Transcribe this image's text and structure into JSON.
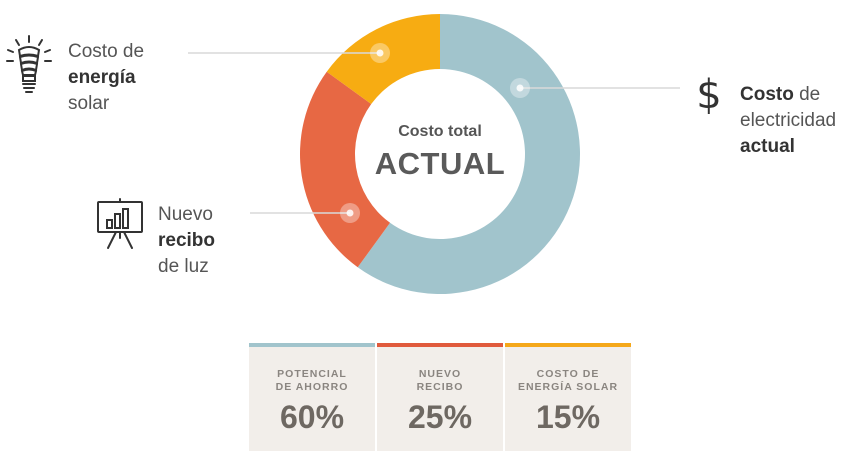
{
  "chart_data": {
    "type": "pie",
    "donut": true,
    "center_text_small": "Costo total",
    "center_text_big": "ACTUAL",
    "slices": [
      {
        "name": "Potencial de ahorro",
        "value": 60,
        "color": "#a1c4cc"
      },
      {
        "name": "Nuevo recibo",
        "value": 25,
        "color": "#e76844"
      },
      {
        "name": "Costo de energía solar",
        "value": 15,
        "color": "#f7ac12"
      }
    ]
  },
  "labels": {
    "electricity": {
      "bold": "Costo",
      "rest1": " de",
      "rest2": "electricidad",
      "rest3": "actual",
      "icon": "dollar-icon"
    },
    "solar": {
      "line1": "Costo de",
      "bold": "energía",
      "line3": "solar",
      "icon": "lightbulb-icon"
    },
    "bill": {
      "line1": "Nuevo",
      "bold": "recibo",
      "line3": "de luz",
      "icon": "presentation-chart-icon"
    }
  },
  "cards": [
    {
      "caption_line1": "POTENCIAL",
      "caption_line2": "DE AHORRO",
      "value": "60%",
      "color": "#a1c4cc"
    },
    {
      "caption_line1": "NUEVO",
      "caption_line2": "RECIBO",
      "value": "25%",
      "color": "#e05a3c"
    },
    {
      "caption_line1": "COSTO DE",
      "caption_line2": "ENERGÍA SOLAR",
      "value": "15%",
      "color": "#f5a81a"
    }
  ]
}
